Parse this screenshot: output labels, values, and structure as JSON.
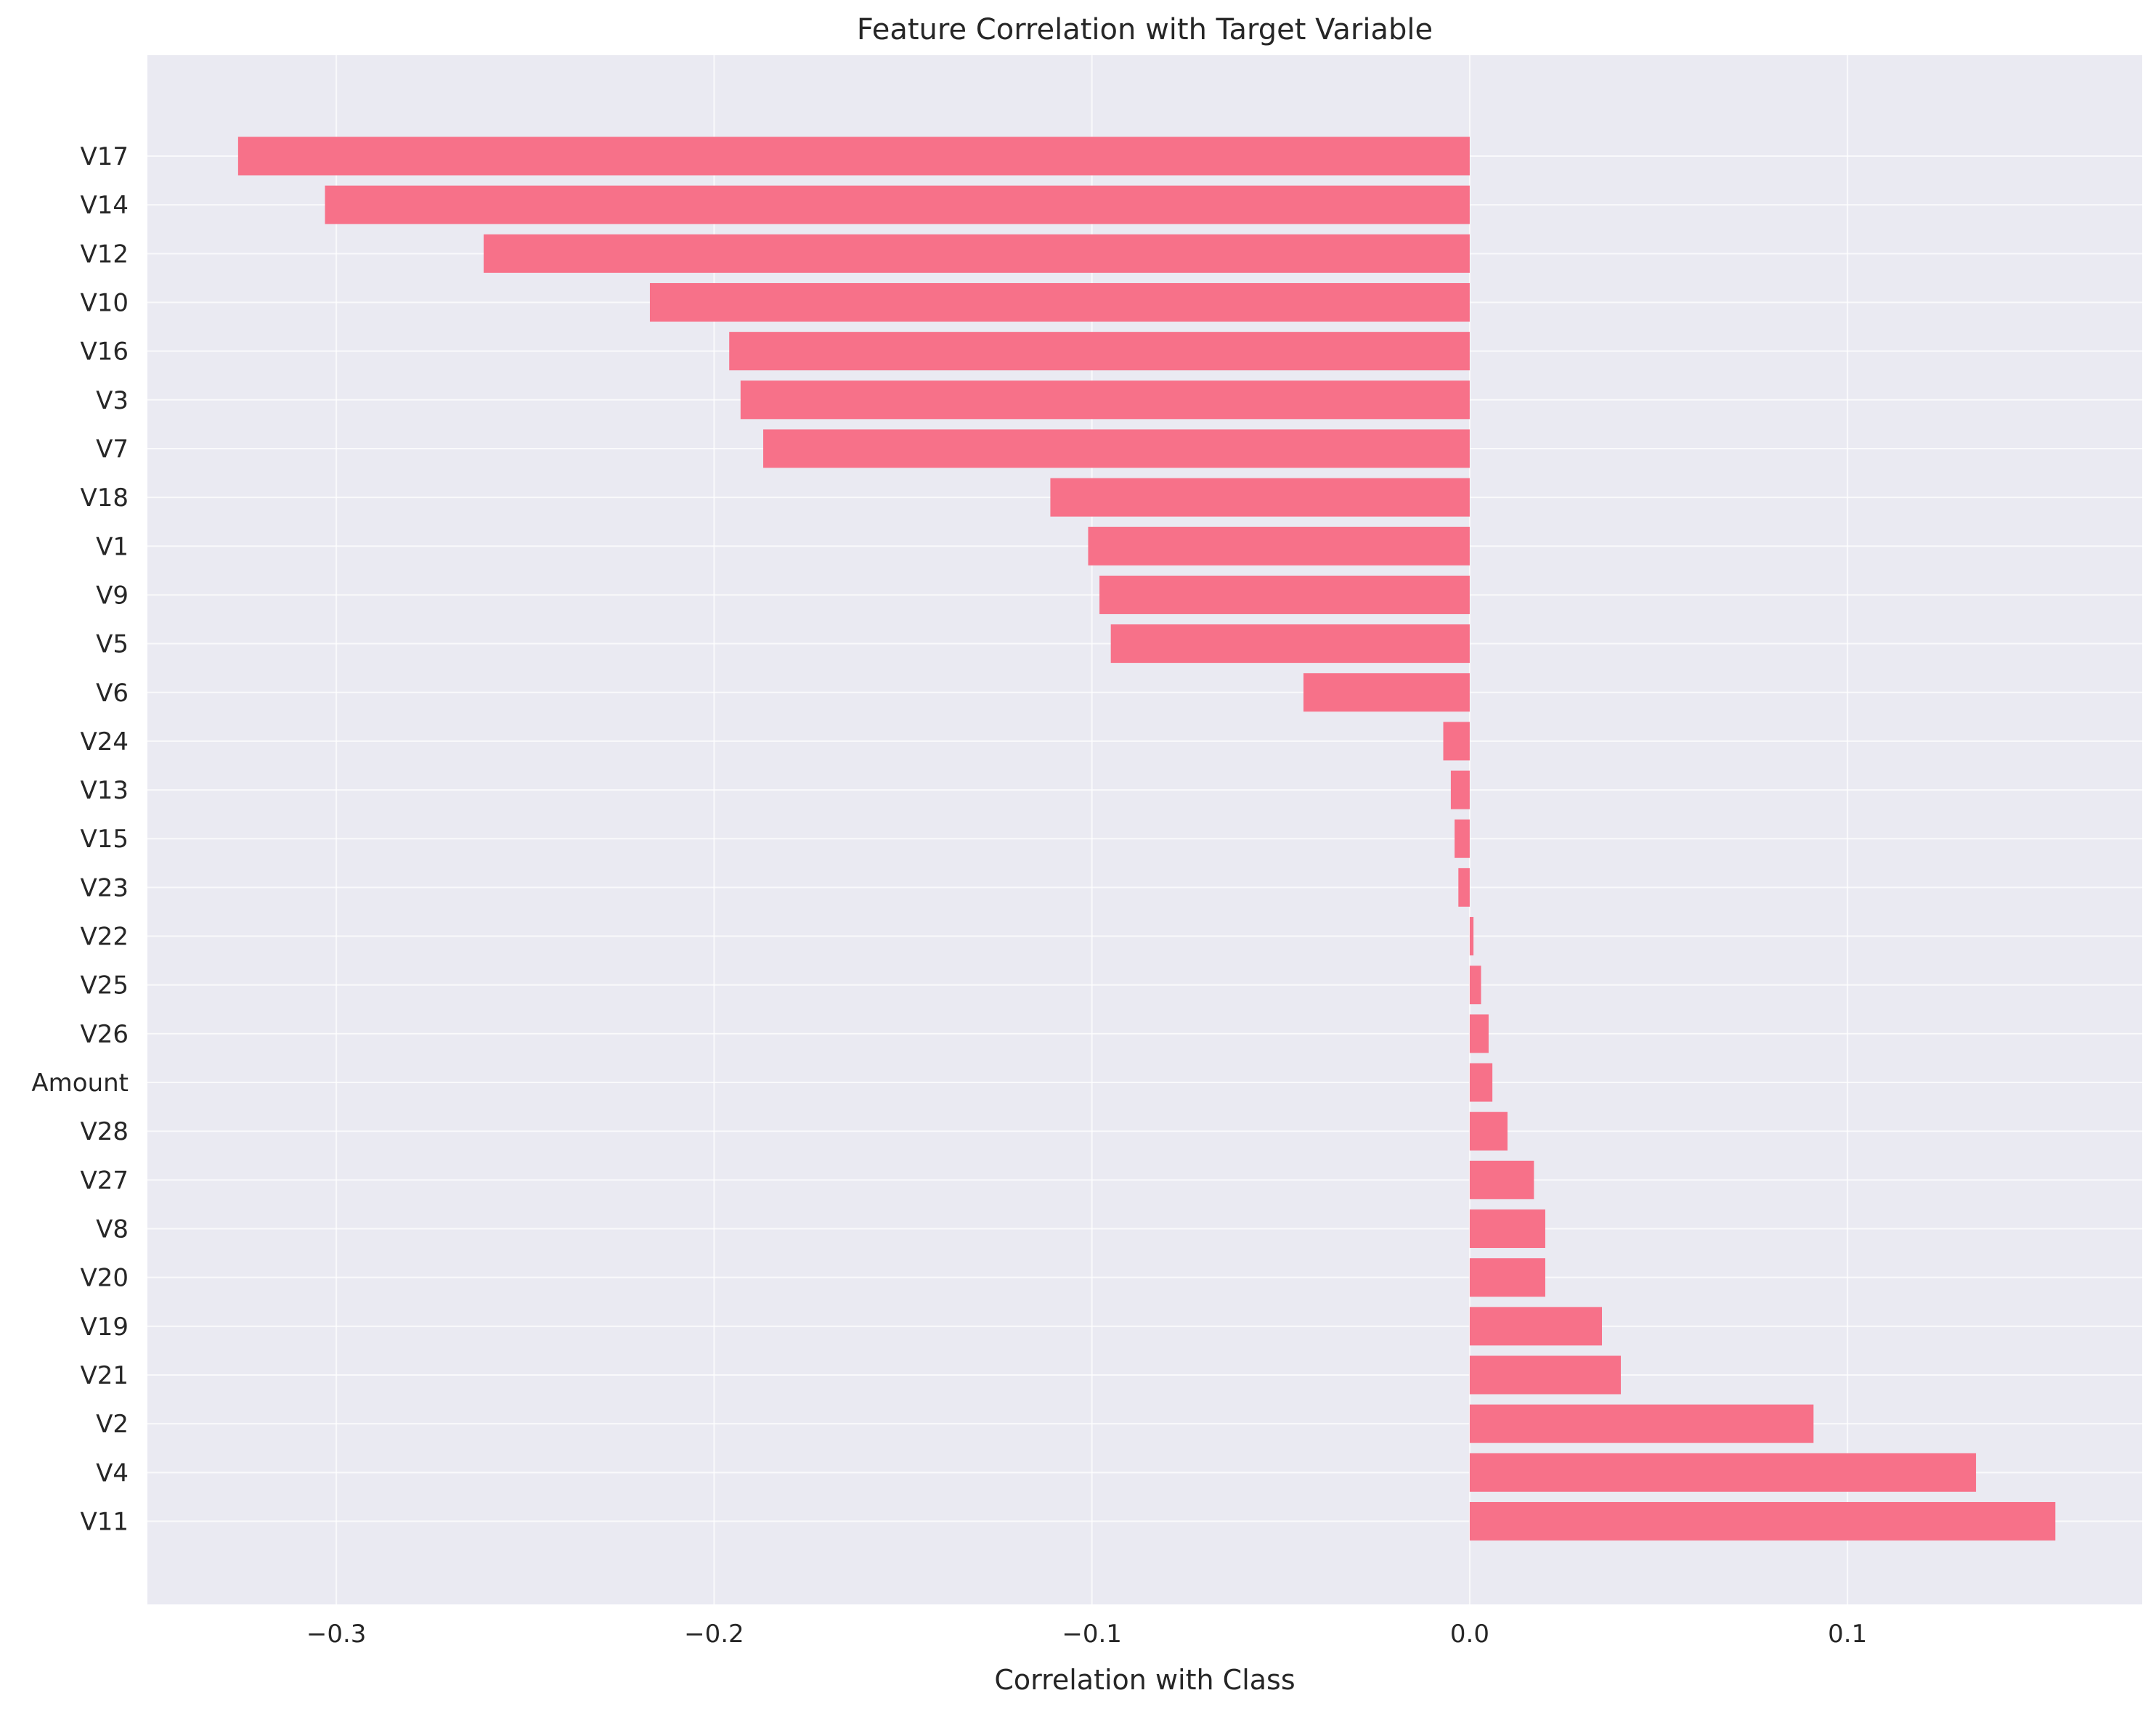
{
  "chart_data": {
    "type": "bar",
    "orientation": "horizontal",
    "title": "Feature Correlation with Target Variable",
    "xlabel": "Correlation with Class",
    "ylabel": "",
    "xlim": [
      -0.35,
      0.178
    ],
    "xticks": [
      -0.3,
      -0.2,
      -0.1,
      0.0,
      0.1
    ],
    "xtick_labels": [
      "−0.3",
      "−0.2",
      "−0.1",
      "0.0",
      "0.1"
    ],
    "grid": true,
    "legend": "none",
    "bar_color": "#f77189",
    "background_color": "#eaeaf2",
    "grid_color": "#ffffff",
    "categories": [
      "V17",
      "V14",
      "V12",
      "V10",
      "V16",
      "V3",
      "V7",
      "V18",
      "V1",
      "V9",
      "V5",
      "V6",
      "V24",
      "V13",
      "V15",
      "V23",
      "V22",
      "V25",
      "V26",
      "Amount",
      "V28",
      "V27",
      "V8",
      "V20",
      "V19",
      "V21",
      "V2",
      "V4",
      "V11"
    ],
    "values": [
      -0.326,
      -0.303,
      -0.261,
      -0.217,
      -0.196,
      -0.193,
      -0.187,
      -0.111,
      -0.101,
      -0.098,
      -0.095,
      -0.044,
      -0.007,
      -0.005,
      -0.004,
      -0.003,
      0.001,
      0.003,
      0.005,
      0.006,
      0.01,
      0.017,
      0.02,
      0.02,
      0.035,
      0.04,
      0.091,
      0.134,
      0.155
    ]
  }
}
